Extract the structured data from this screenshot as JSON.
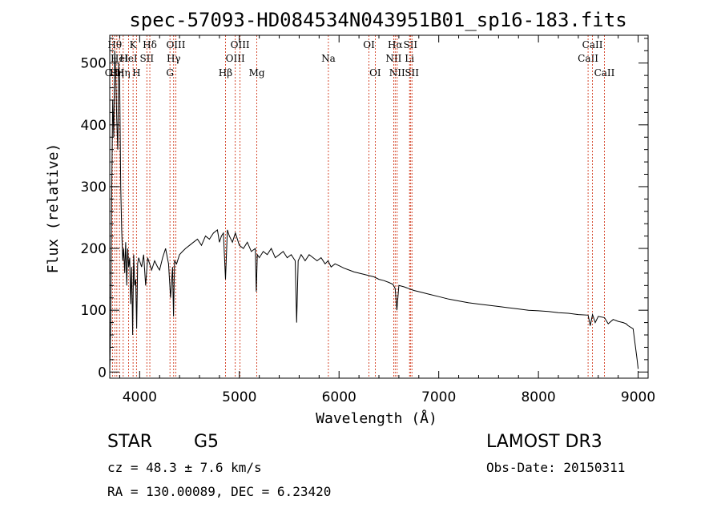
{
  "chart_data": {
    "type": "line",
    "title": "spec-57093-HD084534N043951B01_sp16-183.fits",
    "xlabel": "Wavelength (Å)",
    "ylabel": "Flux (relative)",
    "xlim": [
      3700,
      9100
    ],
    "ylim": [
      -10,
      545
    ],
    "xticks": [
      4000,
      5000,
      6000,
      7000,
      8000,
      9000
    ],
    "yticks": [
      0,
      100,
      200,
      300,
      400,
      500
    ],
    "series": [
      {
        "name": "flux",
        "x": [
          3700,
          3710,
          3720,
          3730,
          3740,
          3750,
          3760,
          3770,
          3780,
          3790,
          3800,
          3810,
          3820,
          3830,
          3840,
          3850,
          3860,
          3870,
          3880,
          3890,
          3900,
          3910,
          3920,
          3930,
          3940,
          3950,
          3960,
          3970,
          3980,
          3990,
          4000,
          4020,
          4040,
          4060,
          4080,
          4100,
          4120,
          4150,
          4180,
          4200,
          4230,
          4260,
          4290,
          4310,
          4330,
          4340,
          4350,
          4370,
          4400,
          4430,
          4460,
          4500,
          4540,
          4580,
          4620,
          4660,
          4700,
          4740,
          4780,
          4800,
          4820,
          4840,
          4861,
          4880,
          4900,
          4930,
          4960,
          5000,
          5040,
          5080,
          5120,
          5160,
          5170,
          5180,
          5200,
          5240,
          5280,
          5320,
          5360,
          5400,
          5440,
          5480,
          5520,
          5560,
          5575,
          5590,
          5620,
          5660,
          5700,
          5740,
          5780,
          5820,
          5860,
          5890,
          5920,
          5960,
          6000,
          6050,
          6100,
          6150,
          6200,
          6250,
          6300,
          6350,
          6400,
          6450,
          6500,
          6540,
          6563,
          6580,
          6600,
          6650,
          6700,
          6750,
          6800,
          6900,
          7000,
          7100,
          7200,
          7300,
          7400,
          7500,
          7600,
          7700,
          7800,
          7900,
          8000,
          8100,
          8200,
          8300,
          8400,
          8498,
          8520,
          8542,
          8570,
          8600,
          8662,
          8700,
          8750,
          8800,
          8850,
          8880,
          8900,
          8950,
          8990,
          9000
        ],
        "y": [
          0,
          80,
          300,
          440,
          380,
          520,
          480,
          410,
          360,
          500,
          470,
          300,
          230,
          180,
          200,
          160,
          210,
          140,
          200,
          170,
          185,
          110,
          170,
          60,
          190,
          140,
          150,
          70,
          175,
          185,
          180,
          170,
          190,
          140,
          185,
          175,
          165,
          180,
          170,
          165,
          185,
          200,
          175,
          120,
          170,
          90,
          180,
          175,
          190,
          195,
          200,
          205,
          210,
          215,
          205,
          220,
          215,
          225,
          230,
          210,
          220,
          225,
          150,
          230,
          220,
          210,
          225,
          205,
          200,
          210,
          195,
          200,
          130,
          190,
          185,
          195,
          190,
          200,
          185,
          190,
          195,
          185,
          190,
          180,
          80,
          180,
          190,
          180,
          190,
          185,
          180,
          185,
          175,
          180,
          170,
          175,
          172,
          168,
          165,
          162,
          160,
          158,
          156,
          154,
          150,
          148,
          145,
          142,
          135,
          100,
          140,
          138,
          135,
          132,
          130,
          126,
          122,
          118,
          115,
          112,
          110,
          108,
          106,
          104,
          102,
          100,
          99,
          98,
          96,
          95,
          93,
          92,
          75,
          93,
          80,
          90,
          88,
          78,
          85,
          82,
          80,
          78,
          75,
          70,
          20,
          5
        ]
      }
    ],
    "annotations": [
      {
        "x": 3727,
        "label": "OII",
        "row": 3
      },
      {
        "x": 3750,
        "label": "Hθ",
        "row": 1
      },
      {
        "x": 3771,
        "label": "Hη",
        "row": 3
      },
      {
        "x": 3798,
        "label": "HeI",
        "row": 2
      },
      {
        "x": 3835,
        "label": "Hη",
        "row": 3
      },
      {
        "x": 3889,
        "label": "HeI",
        "row": 2
      },
      {
        "x": 3934,
        "label": "K",
        "row": 1
      },
      {
        "x": 3968,
        "label": "H",
        "row": 3
      },
      {
        "x": 4072,
        "label": "SII",
        "row": 2
      },
      {
        "x": 4102,
        "label": "Hδ",
        "row": 1
      },
      {
        "x": 4304,
        "label": "G",
        "row": 3
      },
      {
        "x": 4341,
        "label": "Hγ",
        "row": 2
      },
      {
        "x": 4363,
        "label": "OIII",
        "row": 1
      },
      {
        "x": 4861,
        "label": "Hβ",
        "row": 3
      },
      {
        "x": 4959,
        "label": "OIII",
        "row": 2
      },
      {
        "x": 5007,
        "label": "OIII",
        "row": 1
      },
      {
        "x": 5175,
        "label": "Mg",
        "row": 3
      },
      {
        "x": 5893,
        "label": "Na",
        "row": 2
      },
      {
        "x": 6300,
        "label": "OI",
        "row": 1
      },
      {
        "x": 6363,
        "label": "OI",
        "row": 3
      },
      {
        "x": 6548,
        "label": "NII",
        "row": 2
      },
      {
        "x": 6563,
        "label": "Hα",
        "row": 1
      },
      {
        "x": 6583,
        "label": "NII",
        "row": 3
      },
      {
        "x": 6707,
        "label": "Li",
        "row": 2
      },
      {
        "x": 6716,
        "label": "SII",
        "row": 1
      },
      {
        "x": 6731,
        "label": "SII",
        "row": 3
      },
      {
        "x": 8498,
        "label": "CaII",
        "row": 2
      },
      {
        "x": 8542,
        "label": "CaII",
        "row": 1
      },
      {
        "x": 8662,
        "label": "CaII",
        "row": 3
      }
    ],
    "line_color": "#000000",
    "marker_color": "#cc2200"
  },
  "info": {
    "object_class": "STAR",
    "subclass": "G5",
    "survey": "LAMOST DR3",
    "cz": "cz = 48.3 ± 7.6 km/s",
    "obs_date": "Obs-Date: 20150311",
    "coords": "RA = 130.00089, DEC =    6.23420"
  }
}
